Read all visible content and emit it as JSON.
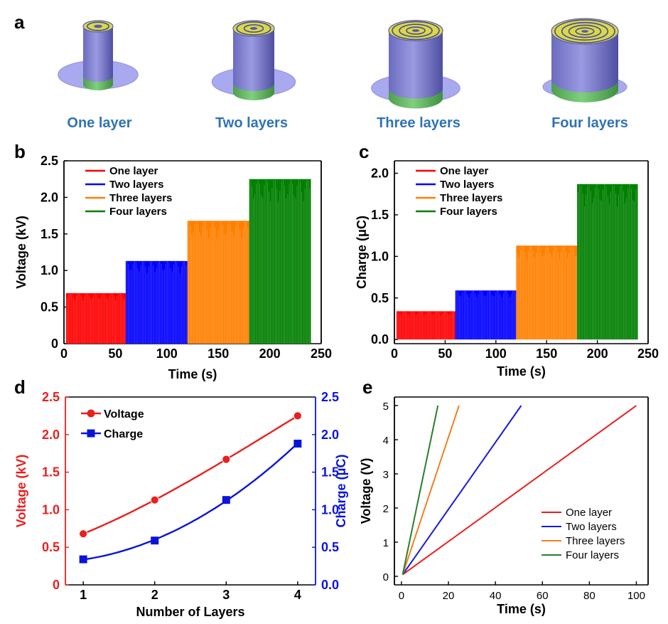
{
  "panel_a": {
    "label": "a",
    "captions": [
      "One layer",
      "Two layers",
      "Three layers",
      "Four layers"
    ],
    "colors": {
      "shell": "#8c8cd6",
      "shell_dark": "#5555a8",
      "coil": "#e6e64a",
      "base": "#a6a6ee",
      "band": "#66bb66"
    }
  },
  "chart_data": [
    {
      "id": "b",
      "label": "b",
      "type": "area",
      "xlabel": "Time (s)",
      "ylabel": "Voltage (kV)",
      "xlim": [
        0,
        250
      ],
      "ylim": [
        0,
        2.5
      ],
      "xticks": [
        0,
        50,
        100,
        150,
        200,
        250
      ],
      "yticks": [
        {
          "v": 0,
          "t": "0"
        },
        {
          "v": 0.5,
          "t": "0.5"
        },
        {
          "v": 1.0,
          "t": "1.0"
        },
        {
          "v": 1.5,
          "t": "1.5"
        },
        {
          "v": 2.0,
          "t": "2.0"
        },
        {
          "v": 2.5,
          "t": "2.5"
        }
      ],
      "legend_position": "top-left",
      "series": [
        {
          "name": "One layer",
          "color": "#ff0000",
          "x_range": [
            2,
            60
          ],
          "peak": 0.69
        },
        {
          "name": "Two layers",
          "color": "#0000ff",
          "x_range": [
            60,
            120
          ],
          "peak": 1.13
        },
        {
          "name": "Three layers",
          "color": "#ff8000",
          "x_range": [
            120,
            180
          ],
          "peak": 1.68
        },
        {
          "name": "Four layers",
          "color": "#007f00",
          "x_range": [
            180,
            240
          ],
          "peak": 2.25
        }
      ]
    },
    {
      "id": "c",
      "label": "c",
      "type": "area",
      "xlabel": "Time (s)",
      "ylabel": "Charge (μC)",
      "xlim": [
        0,
        250
      ],
      "ylim": [
        -0.05,
        2.15
      ],
      "xticks": [
        0,
        50,
        100,
        150,
        200,
        250
      ],
      "yticks": [
        {
          "v": 0,
          "t": "0.0"
        },
        {
          "v": 0.5,
          "t": "0.5"
        },
        {
          "v": 1.0,
          "t": "1.0"
        },
        {
          "v": 1.5,
          "t": "1.5"
        },
        {
          "v": 2.0,
          "t": "2.0"
        }
      ],
      "legend_position": "top-left",
      "series": [
        {
          "name": "One layer",
          "color": "#ff0000",
          "x_range": [
            2,
            60
          ],
          "peak": 0.34
        },
        {
          "name": "Two layers",
          "color": "#0000ff",
          "x_range": [
            60,
            120
          ],
          "peak": 0.59
        },
        {
          "name": "Three layers",
          "color": "#ff8000",
          "x_range": [
            120,
            180
          ],
          "peak": 1.13
        },
        {
          "name": "Four layers",
          "color": "#007f00",
          "x_range": [
            180,
            240
          ],
          "peak": 1.87
        }
      ]
    },
    {
      "id": "d",
      "label": "d",
      "type": "line",
      "xlabel": "Number of Layers",
      "ylabel": "Voltage (kV)",
      "y2label": "Charge (μC)",
      "xlim": [
        0.75,
        4.25
      ],
      "ylim": [
        0,
        2.5
      ],
      "y2lim": [
        0,
        2.5
      ],
      "xticks": [
        1,
        2,
        3,
        4
      ],
      "yticks": [
        {
          "v": 0,
          "t": "0"
        },
        {
          "v": 0.5,
          "t": "0.5"
        },
        {
          "v": 1.0,
          "t": "1.0"
        },
        {
          "v": 1.5,
          "t": "1.5"
        },
        {
          "v": 2.0,
          "t": "2.0"
        },
        {
          "v": 2.5,
          "t": "2.5"
        }
      ],
      "y2ticks": [
        {
          "v": 0,
          "t": "0.0"
        },
        {
          "v": 0.5,
          "t": "0.5"
        },
        {
          "v": 1.0,
          "t": "1.0"
        },
        {
          "v": 1.5,
          "t": "1.5"
        },
        {
          "v": 2.0,
          "t": "2.0"
        },
        {
          "v": 2.5,
          "t": "2.5"
        }
      ],
      "legend_position": "top-left",
      "series": [
        {
          "name": "Voltage",
          "axis": "left",
          "color": "#e8201e",
          "marker": "circle",
          "x": [
            1,
            2,
            3,
            4
          ],
          "y": [
            0.68,
            1.13,
            1.67,
            2.25
          ]
        },
        {
          "name": "Charge",
          "axis": "right",
          "color": "#0a14d8",
          "marker": "square",
          "x": [
            1,
            2,
            3,
            4
          ],
          "y": [
            0.34,
            0.59,
            1.13,
            1.88
          ]
        }
      ]
    },
    {
      "id": "e",
      "label": "e",
      "type": "line",
      "xlabel": "Time (s)",
      "ylabel": "Voltage (V)",
      "xlim": [
        -3,
        105
      ],
      "ylim": [
        -0.25,
        5.25
      ],
      "xticks": [
        0,
        20,
        40,
        60,
        80,
        100
      ],
      "yticks": [
        {
          "v": 0,
          "t": "0"
        },
        {
          "v": 1,
          "t": "1"
        },
        {
          "v": 2,
          "t": "2"
        },
        {
          "v": 3,
          "t": "3"
        },
        {
          "v": 4,
          "t": "4"
        },
        {
          "v": 5,
          "t": "5"
        }
      ],
      "legend_position": "bottom-right",
      "series": [
        {
          "name": "One layer",
          "color": "#e8201e",
          "x": [
            0.5,
            100
          ],
          "y": [
            0.05,
            5.0
          ]
        },
        {
          "name": "Two layers",
          "color": "#1a1ad8",
          "x": [
            0.5,
            51
          ],
          "y": [
            0.05,
            5.0
          ]
        },
        {
          "name": "Three layers",
          "color": "#f08020",
          "x": [
            0.5,
            24.5
          ],
          "y": [
            0.05,
            5.0
          ]
        },
        {
          "name": "Four layers",
          "color": "#2a7f2a",
          "x": [
            0.5,
            15.5
          ],
          "y": [
            0.05,
            5.0
          ]
        }
      ]
    }
  ]
}
